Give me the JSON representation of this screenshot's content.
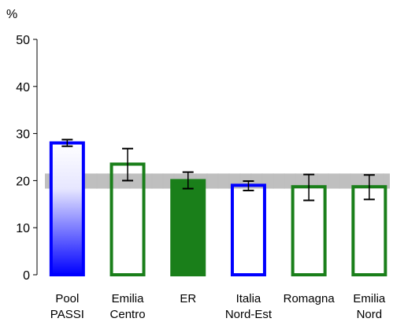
{
  "chart_data": {
    "type": "bar",
    "ylabel": "%",
    "ylim": [
      0,
      50
    ],
    "yticks": [
      0,
      10,
      20,
      30,
      40,
      50
    ],
    "categories": [
      {
        "line1": "Pool",
        "line2": "PASSI"
      },
      {
        "line1": "Emilia",
        "line2": "Centro"
      },
      {
        "line1": "ER",
        "line2": ""
      },
      {
        "line1": "Italia",
        "line2": "Nord-Est"
      },
      {
        "line1": "Romagna",
        "line2": ""
      },
      {
        "line1": "Emilia",
        "line2": "Nord"
      }
    ],
    "values": [
      28.0,
      23.5,
      20.0,
      19.0,
      18.7,
      18.7
    ],
    "ci_low": [
      27.3,
      20.0,
      18.3,
      17.9,
      15.8,
      16.0
    ],
    "ci_high": [
      28.7,
      26.8,
      21.8,
      19.9,
      21.3,
      21.2
    ],
    "bar_styles": [
      "gradient-blue",
      "outline-green",
      "filled-green",
      "outline-blue",
      "outline-green",
      "outline-green"
    ],
    "reference_band": [
      18.3,
      21.5
    ],
    "colors": {
      "blue": "#0000ff",
      "green": "#1a7f1a",
      "band": "#aaaaaa",
      "errorbar": "#000000"
    }
  }
}
